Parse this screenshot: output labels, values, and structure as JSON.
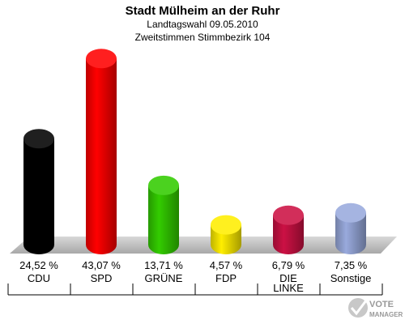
{
  "header": {
    "title": "Stadt Mülheim an der Ruhr",
    "subtitle": "Landtagswahl 09.05.2010",
    "subtitle2": "Zweitstimmen Stimmbezirk 104"
  },
  "chart_data": {
    "type": "bar",
    "title": "Stadt Mülheim an der Ruhr",
    "categories": [
      "CDU",
      "SPD",
      "GRÜNE",
      "FDP",
      "DIE LINKE",
      "Sonstige"
    ],
    "values": [
      24.52,
      43.07,
      13.71,
      4.57,
      6.79,
      7.35
    ],
    "value_labels": [
      "24,52 %",
      "43,07 %",
      "13,71 %",
      "4,57 %",
      "6,79 %",
      "7,35 %"
    ],
    "colors": [
      "#000000",
      "#ff0000",
      "#33cc00",
      "#ffee00",
      "#cc1144",
      "#99aadd"
    ],
    "ylim": [
      0,
      45
    ],
    "grid": false,
    "legend": "none"
  },
  "brand": {
    "line1": "VOTE",
    "line2": "MANAGER"
  }
}
